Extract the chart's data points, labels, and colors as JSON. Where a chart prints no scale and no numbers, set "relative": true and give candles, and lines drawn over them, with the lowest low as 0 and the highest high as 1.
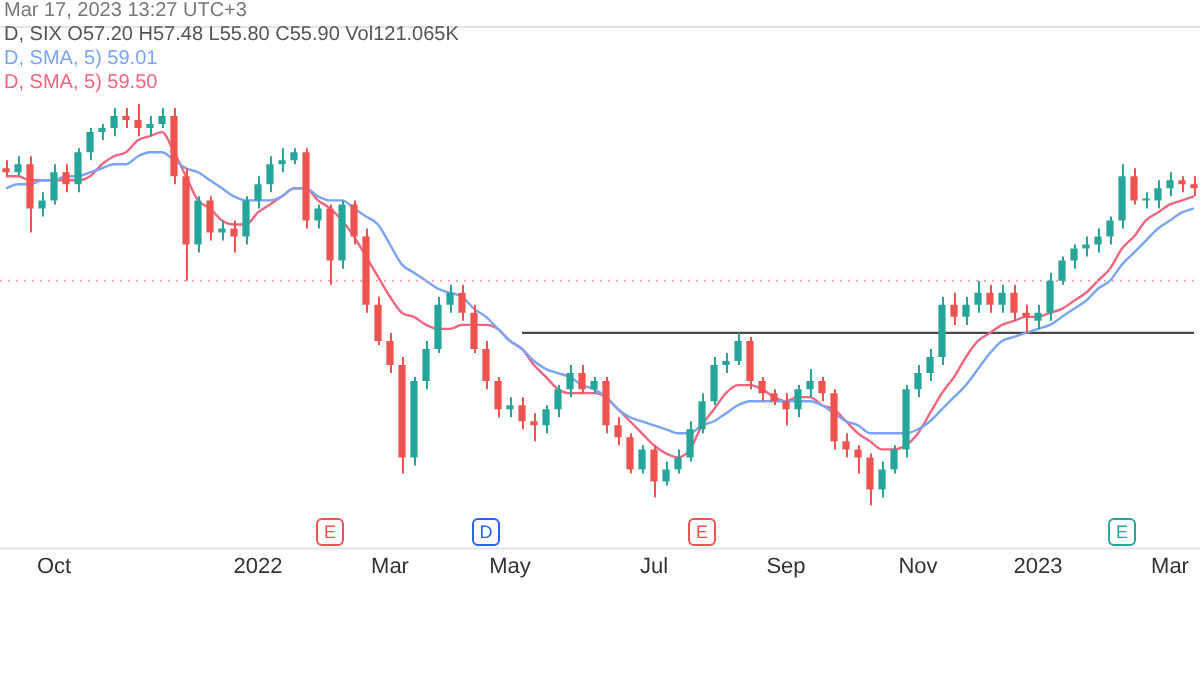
{
  "chart_data": {
    "type": "candlestick",
    "title": "Mar 17, 2023 13:27 UTC+3",
    "subtitle": "D, SIX O57.20 H57.48 L55.80 C55.90 Vol121.065K",
    "relative": true,
    "tick_labels": "x",
    "legend": "top left",
    "categories": [
      null,
      null,
      null,
      null,
      "Oct",
      null,
      null,
      null,
      null,
      null,
      null,
      null,
      null,
      null,
      null,
      null,
      null,
      null,
      null,
      null,
      null,
      "2022",
      null,
      null,
      null,
      null,
      null,
      null,
      null,
      null,
      null,
      null,
      "Mar",
      null,
      null,
      null,
      null,
      null,
      null,
      null,
      null,
      null,
      "May",
      null,
      null,
      null,
      null,
      null,
      null,
      null,
      null,
      null,
      null,
      null,
      "Jul",
      null,
      null,
      null,
      null,
      null,
      null,
      null,
      null,
      null,
      null,
      "Sep",
      null,
      null,
      null,
      null,
      null,
      null,
      null,
      null,
      null,
      null,
      "Nov",
      null,
      null,
      null,
      null,
      null,
      null,
      null,
      null,
      null,
      "2023",
      null,
      null,
      null,
      null,
      null,
      null,
      null,
      null,
      null,
      null,
      "Mar",
      null,
      null
    ],
    "ohlc": [
      [
        0.84,
        0.86,
        0.82,
        0.83
      ],
      [
        0.83,
        0.87,
        0.82,
        0.85
      ],
      [
        0.85,
        0.87,
        0.68,
        0.74
      ],
      [
        0.74,
        0.78,
        0.72,
        0.76
      ],
      [
        0.76,
        0.85,
        0.75,
        0.83
      ],
      [
        0.83,
        0.85,
        0.78,
        0.8
      ],
      [
        0.8,
        0.89,
        0.78,
        0.88
      ],
      [
        0.88,
        0.94,
        0.86,
        0.93
      ],
      [
        0.93,
        0.95,
        0.91,
        0.94
      ],
      [
        0.94,
        0.99,
        0.92,
        0.97
      ],
      [
        0.97,
        0.99,
        0.94,
        0.96
      ],
      [
        0.96,
        1.0,
        0.92,
        0.94
      ],
      [
        0.94,
        0.97,
        0.92,
        0.95
      ],
      [
        0.95,
        0.99,
        0.94,
        0.97
      ],
      [
        0.97,
        0.99,
        0.8,
        0.82
      ],
      [
        0.82,
        0.84,
        0.56,
        0.65
      ],
      [
        0.65,
        0.77,
        0.63,
        0.76
      ],
      [
        0.76,
        0.77,
        0.66,
        0.68
      ],
      [
        0.68,
        0.71,
        0.66,
        0.69
      ],
      [
        0.69,
        0.71,
        0.63,
        0.67
      ],
      [
        0.67,
        0.77,
        0.65,
        0.76
      ],
      [
        0.76,
        0.82,
        0.74,
        0.8
      ],
      [
        0.8,
        0.87,
        0.78,
        0.85
      ],
      [
        0.85,
        0.89,
        0.83,
        0.86
      ],
      [
        0.86,
        0.89,
        0.85,
        0.88
      ],
      [
        0.88,
        0.89,
        0.69,
        0.71
      ],
      [
        0.71,
        0.75,
        0.69,
        0.74
      ],
      [
        0.74,
        0.75,
        0.55,
        0.61
      ],
      [
        0.61,
        0.76,
        0.59,
        0.75
      ],
      [
        0.75,
        0.76,
        0.65,
        0.67
      ],
      [
        0.67,
        0.69,
        0.48,
        0.5
      ],
      [
        0.5,
        0.52,
        0.4,
        0.41
      ],
      [
        0.41,
        0.43,
        0.33,
        0.35
      ],
      [
        0.35,
        0.37,
        0.08,
        0.12
      ],
      [
        0.12,
        0.32,
        0.1,
        0.31
      ],
      [
        0.31,
        0.41,
        0.29,
        0.39
      ],
      [
        0.39,
        0.52,
        0.38,
        0.5
      ],
      [
        0.5,
        0.55,
        0.48,
        0.53
      ],
      [
        0.53,
        0.55,
        0.46,
        0.48
      ],
      [
        0.48,
        0.5,
        0.38,
        0.39
      ],
      [
        0.39,
        0.41,
        0.29,
        0.31
      ],
      [
        0.31,
        0.32,
        0.22,
        0.24
      ],
      [
        0.24,
        0.27,
        0.22,
        0.25
      ],
      [
        0.25,
        0.27,
        0.19,
        0.21
      ],
      [
        0.21,
        0.23,
        0.16,
        0.2
      ],
      [
        0.2,
        0.25,
        0.18,
        0.24
      ],
      [
        0.24,
        0.3,
        0.22,
        0.29
      ],
      [
        0.29,
        0.35,
        0.27,
        0.33
      ],
      [
        0.33,
        0.35,
        0.28,
        0.29
      ],
      [
        0.29,
        0.32,
        0.28,
        0.31
      ],
      [
        0.31,
        0.32,
        0.18,
        0.2
      ],
      [
        0.2,
        0.22,
        0.15,
        0.17
      ],
      [
        0.17,
        0.18,
        0.08,
        0.09
      ],
      [
        0.09,
        0.15,
        0.08,
        0.14
      ],
      [
        0.14,
        0.15,
        0.02,
        0.06
      ],
      [
        0.06,
        0.11,
        0.05,
        0.09
      ],
      [
        0.09,
        0.14,
        0.08,
        0.12
      ],
      [
        0.12,
        0.21,
        0.11,
        0.19
      ],
      [
        0.19,
        0.28,
        0.18,
        0.26
      ],
      [
        0.26,
        0.37,
        0.25,
        0.35
      ],
      [
        0.35,
        0.38,
        0.33,
        0.36
      ],
      [
        0.36,
        0.43,
        0.35,
        0.41
      ],
      [
        0.41,
        0.42,
        0.29,
        0.31
      ],
      [
        0.31,
        0.32,
        0.26,
        0.28
      ],
      [
        0.28,
        0.29,
        0.25,
        0.26
      ],
      [
        0.26,
        0.28,
        0.2,
        0.24
      ],
      [
        0.24,
        0.3,
        0.22,
        0.29
      ],
      [
        0.29,
        0.34,
        0.27,
        0.31
      ],
      [
        0.31,
        0.32,
        0.26,
        0.28
      ],
      [
        0.28,
        0.29,
        0.14,
        0.16
      ],
      [
        0.16,
        0.18,
        0.12,
        0.14
      ],
      [
        0.14,
        0.15,
        0.08,
        0.12
      ],
      [
        0.12,
        0.13,
        0.0,
        0.04
      ],
      [
        0.04,
        0.11,
        0.02,
        0.09
      ],
      [
        0.09,
        0.15,
        0.08,
        0.14
      ],
      [
        0.14,
        0.3,
        0.12,
        0.29
      ],
      [
        0.29,
        0.35,
        0.27,
        0.33
      ],
      [
        0.33,
        0.39,
        0.31,
        0.37
      ],
      [
        0.37,
        0.52,
        0.35,
        0.5
      ],
      [
        0.5,
        0.53,
        0.45,
        0.47
      ],
      [
        0.47,
        0.52,
        0.45,
        0.5
      ],
      [
        0.5,
        0.56,
        0.48,
        0.53
      ],
      [
        0.53,
        0.55,
        0.48,
        0.5
      ],
      [
        0.5,
        0.55,
        0.48,
        0.53
      ],
      [
        0.53,
        0.55,
        0.46,
        0.48
      ],
      [
        0.48,
        0.5,
        0.43,
        0.47
      ],
      [
        0.46,
        0.5,
        0.44,
        0.48
      ],
      [
        0.48,
        0.58,
        0.46,
        0.56
      ],
      [
        0.56,
        0.62,
        0.55,
        0.61
      ],
      [
        0.61,
        0.65,
        0.59,
        0.64
      ],
      [
        0.64,
        0.67,
        0.62,
        0.65
      ],
      [
        0.65,
        0.69,
        0.63,
        0.67
      ],
      [
        0.67,
        0.72,
        0.65,
        0.71
      ],
      [
        0.71,
        0.85,
        0.69,
        0.82
      ],
      [
        0.82,
        0.84,
        0.75,
        0.76
      ],
      [
        0.76,
        0.78,
        0.74,
        0.76
      ],
      [
        0.76,
        0.81,
        0.74,
        0.79
      ],
      [
        0.79,
        0.83,
        0.77,
        0.81
      ],
      [
        0.81,
        0.82,
        0.78,
        0.8
      ],
      [
        0.8,
        0.82,
        0.77,
        0.79
      ]
    ],
    "series": [
      {
        "type": "line",
        "name": "D, SMA, 5) 59.01",
        "color": "#7ba4f2",
        "values": [
          0.79,
          0.8,
          0.8,
          0.81,
          0.81,
          0.82,
          0.82,
          0.83,
          0.84,
          0.85,
          0.85,
          0.87,
          0.88,
          0.88,
          0.86,
          0.84,
          0.83,
          0.81,
          0.79,
          0.77,
          0.76,
          0.76,
          0.76,
          0.77,
          0.79,
          0.79,
          0.77,
          0.76,
          0.76,
          0.74,
          0.72,
          0.7,
          0.65,
          0.6,
          0.58,
          0.56,
          0.54,
          0.53,
          0.52,
          0.49,
          0.47,
          0.44,
          0.41,
          0.39,
          0.36,
          0.34,
          0.33,
          0.32,
          0.3,
          0.29,
          0.27,
          0.24,
          0.22,
          0.21,
          0.2,
          0.19,
          0.18,
          0.18,
          0.2,
          0.21,
          0.23,
          0.25,
          0.26,
          0.26,
          0.26,
          0.26,
          0.26,
          0.26,
          0.25,
          0.23,
          0.21,
          0.2,
          0.18,
          0.18,
          0.18,
          0.18,
          0.19,
          0.21,
          0.24,
          0.27,
          0.3,
          0.34,
          0.38,
          0.41,
          0.42,
          0.43,
          0.44,
          0.45,
          0.47,
          0.49,
          0.51,
          0.54,
          0.56,
          0.6,
          0.63,
          0.66,
          0.69,
          0.71,
          0.73,
          0.74
        ]
      },
      {
        "type": "line",
        "name": "D, SMA, 5) 59.50",
        "color": "#f0667f",
        "values": [
          0.82,
          0.82,
          0.81,
          0.81,
          0.81,
          0.81,
          0.81,
          0.82,
          0.85,
          0.87,
          0.88,
          0.91,
          0.92,
          0.93,
          0.88,
          0.82,
          0.76,
          0.74,
          0.71,
          0.7,
          0.7,
          0.73,
          0.75,
          0.77,
          0.79,
          0.79,
          0.76,
          0.74,
          0.71,
          0.67,
          0.62,
          0.57,
          0.52,
          0.48,
          0.47,
          0.45,
          0.44,
          0.44,
          0.45,
          0.45,
          0.45,
          0.44,
          0.41,
          0.39,
          0.35,
          0.32,
          0.29,
          0.28,
          0.28,
          0.28,
          0.27,
          0.24,
          0.21,
          0.18,
          0.15,
          0.13,
          0.12,
          0.14,
          0.2,
          0.24,
          0.28,
          0.3,
          0.3,
          0.29,
          0.27,
          0.26,
          0.27,
          0.27,
          0.25,
          0.24,
          0.21,
          0.18,
          0.16,
          0.14,
          0.14,
          0.15,
          0.18,
          0.23,
          0.28,
          0.32,
          0.37,
          0.41,
          0.43,
          0.45,
          0.46,
          0.47,
          0.47,
          0.48,
          0.49,
          0.51,
          0.53,
          0.56,
          0.59,
          0.64,
          0.67,
          0.71,
          0.73,
          0.75,
          0.76,
          0.77
        ]
      },
      {
        "type": "line",
        "color": "#4a4a4a",
        "values": [
          null,
          null,
          null,
          null,
          null,
          null,
          null,
          null,
          null,
          null,
          null,
          null,
          null,
          null,
          null,
          null,
          null,
          null,
          null,
          null,
          null,
          null,
          null,
          null,
          null,
          null,
          null,
          null,
          null,
          null,
          null,
          null,
          null,
          null,
          null,
          null,
          null,
          null,
          null,
          null,
          null,
          null,
          null,
          0.43,
          0.43,
          0.43,
          0.43,
          0.43,
          0.43,
          0.43,
          0.43,
          0.43,
          0.43,
          0.43,
          0.43,
          0.43,
          0.43,
          0.43,
          0.43,
          0.43,
          0.43,
          0.43,
          0.43,
          0.43,
          0.43,
          0.43,
          0.43,
          0.43,
          0.43,
          0.43,
          0.43,
          0.43,
          0.43,
          0.43,
          0.43,
          0.43,
          0.43,
          0.43,
          0.43,
          0.43,
          0.43,
          0.43,
          0.43,
          0.43,
          0.43,
          0.43,
          0.43,
          0.43,
          0.43,
          0.43,
          0.43,
          0.43,
          0.43,
          0.43,
          0.43,
          0.43,
          0.43,
          0.43,
          0.43,
          0.43
        ]
      }
    ],
    "ref_lines": [
      {
        "axis": "y",
        "value": 0.56,
        "color": "#f4a3ad",
        "line_style": "dotted"
      }
    ],
    "annotations": [
      "E",
      "D",
      "E",
      "E"
    ]
  }
}
